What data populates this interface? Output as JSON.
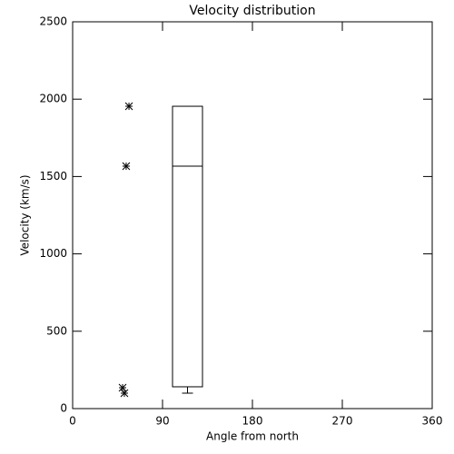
{
  "chart_data": {
    "type": "box",
    "title": "Velocity distribution",
    "xlabel": "Angle from north",
    "ylabel": "Velocity (km/s)",
    "xlim": [
      0,
      360
    ],
    "xticks": [
      0,
      90,
      180,
      270,
      360
    ],
    "ylim": [
      0,
      2500
    ],
    "yticks": [
      0,
      500,
      1000,
      1500,
      2000,
      2500
    ],
    "points": {
      "x": [
        56.4,
        53.6,
        50,
        51.8
      ],
      "y": [
        1954,
        1567,
        135,
        100
      ]
    },
    "box": {
      "x_range": [
        100,
        130
      ],
      "min": 100,
      "q1": 141,
      "median": 1567,
      "q3": 1954
    },
    "color": "#000000"
  }
}
